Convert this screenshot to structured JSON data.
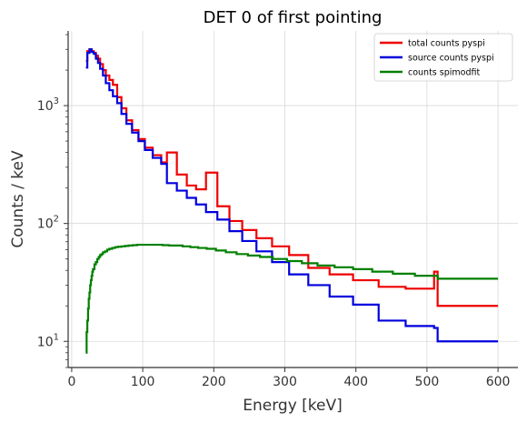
{
  "chart_data": {
    "type": "line",
    "drawstyle": "steps-post",
    "title": "DET 0 of first pointing",
    "xlabel": "Energy [keV]",
    "ylabel": "Counts / keV",
    "xscale": "linear",
    "yscale": "log",
    "xlim": [
      -5,
      628
    ],
    "ylim": [
      6,
      4300
    ],
    "xticks": [
      0,
      100,
      200,
      300,
      400,
      500,
      600
    ],
    "xtick_labels": [
      "0",
      "100",
      "200",
      "300",
      "400",
      "500",
      "600"
    ],
    "yticks": [
      10,
      100,
      1000
    ],
    "ytick_labels": [
      "10",
      "10",
      "10"
    ],
    "ytick_exponents": [
      "1",
      "2",
      "3"
    ],
    "grid": true,
    "legend_position": "top-right",
    "series": [
      {
        "name": "total counts pyspi",
        "color": "#ee0000",
        "x": [
          20,
          22,
          25,
          28,
          31,
          34,
          37,
          40,
          44,
          48,
          53,
          58,
          64,
          70,
          77,
          85,
          94,
          103,
          114,
          126,
          134,
          148,
          162,
          175,
          189,
          205,
          222,
          240,
          260,
          282,
          306,
          333,
          363,
          396,
          432,
          470,
          510,
          515,
          600
        ],
        "y": [
          2400,
          2900,
          3000,
          2900,
          2800,
          2650,
          2500,
          2250,
          2000,
          1800,
          1650,
          1500,
          1180,
          950,
          750,
          620,
          520,
          440,
          380,
          330,
          400,
          260,
          210,
          195,
          270,
          140,
          105,
          88,
          75,
          64,
          54,
          42,
          37,
          33,
          29,
          28,
          39,
          20,
          20
        ]
      },
      {
        "name": "source counts pyspi",
        "color": "#0000dd",
        "x": [
          20,
          22,
          25,
          28,
          31,
          34,
          37,
          40,
          44,
          48,
          53,
          58,
          64,
          70,
          77,
          85,
          94,
          103,
          114,
          126,
          134,
          148,
          162,
          175,
          189,
          205,
          222,
          240,
          260,
          282,
          306,
          333,
          363,
          396,
          432,
          470,
          510,
          515,
          600
        ],
        "y": [
          2100,
          2800,
          3000,
          2850,
          2750,
          2500,
          2300,
          2050,
          1800,
          1550,
          1350,
          1200,
          1050,
          850,
          700,
          590,
          500,
          420,
          360,
          320,
          220,
          190,
          165,
          145,
          125,
          108,
          86,
          71,
          58,
          47,
          37,
          30,
          24,
          20.5,
          15,
          13.5,
          13,
          10,
          10
        ]
      },
      {
        "name": "counts spimodfit",
        "color": "#008000",
        "x": [
          20,
          21,
          22,
          23,
          24,
          25,
          26,
          27,
          28,
          29,
          30,
          32,
          34,
          36,
          38,
          40,
          42,
          44,
          47,
          50,
          53,
          57,
          61,
          65,
          70,
          75,
          80,
          86,
          92,
          98,
          105,
          112,
          120,
          128,
          137,
          146,
          156,
          167,
          178,
          190,
          203,
          217,
          232,
          248,
          265,
          283,
          303,
          324,
          346,
          370,
          396,
          423,
          452,
          483,
          515,
          600
        ],
        "y": [
          8,
          12,
          15,
          19,
          23,
          26,
          30,
          33,
          36,
          39,
          41,
          45,
          47,
          50,
          52,
          54,
          55,
          57,
          58,
          60,
          61,
          62,
          63,
          63.5,
          64,
          64.5,
          65,
          65.5,
          66,
          66,
          66,
          66,
          66,
          65.5,
          65,
          65,
          64,
          63,
          62,
          61,
          59,
          57,
          55,
          53.5,
          52,
          50,
          48,
          46,
          44,
          42.5,
          41,
          39,
          37.5,
          36,
          34,
          34
        ]
      }
    ]
  }
}
